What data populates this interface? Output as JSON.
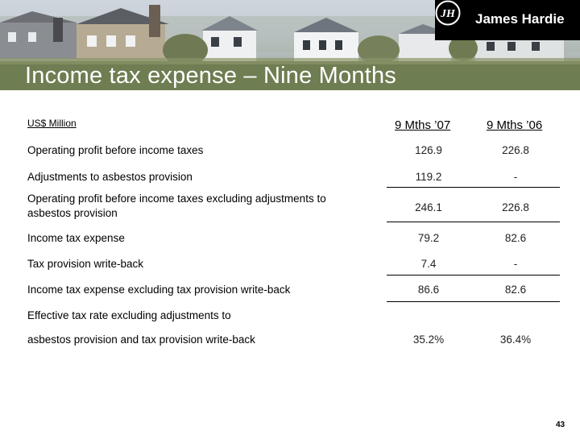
{
  "header": {
    "title": "Income tax expense – Nine Months",
    "brand": "James Hardie"
  },
  "table": {
    "unit_label": "US$ Million",
    "columns": [
      "9 Mths ’07",
      "9 Mths ’06"
    ],
    "rows": [
      {
        "label": "Operating profit before income taxes",
        "v1": "126.9",
        "v2": "226.8"
      },
      {
        "label": "Adjustments to asbestos provision",
        "v1": "119.2",
        "v2": "-"
      },
      {
        "label_line1": "Operating profit before income taxes excluding adjustments to",
        "label_line2": "asbestos provision",
        "v1": "246.1",
        "v2": "226.8"
      },
      {
        "label": "Income tax expense",
        "v1": "79.2",
        "v2": "82.6"
      },
      {
        "label": "Tax provision write-back",
        "v1": "7.4",
        "v2": "-"
      },
      {
        "label": "Income tax expense excluding tax provision write-back",
        "v1": "86.6",
        "v2": "82.6"
      },
      {
        "label_line1": "Effective tax rate excluding adjustments to",
        "label_line2": "asbestos provision and tax provision write-back",
        "v1": "35.2%",
        "v2": "36.4%"
      }
    ]
  },
  "footer": {
    "page_number": "43"
  },
  "colors": {
    "banner_title": "#ffffff",
    "logo_bg": "#000000"
  }
}
